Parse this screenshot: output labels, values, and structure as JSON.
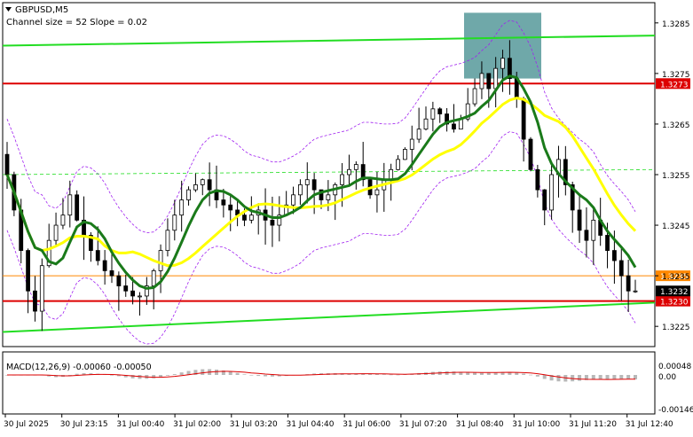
{
  "header": {
    "symbol_label": "GBPUSD,M5",
    "indicator_label": "Channel size = 52 Slope = 0.02"
  },
  "macd": {
    "label": "MACD(12,26,9) -0.00060 -0.00050",
    "axis_ticks": [
      "0.00048",
      "0.00",
      "-0.00146"
    ]
  },
  "colors": {
    "candle": "#000000",
    "ma_fast": "#1a7a1a",
    "ma_slow": "#ffff00",
    "envelope": "#a020f0",
    "channel": "#22dd22",
    "level_red": "#dd0000",
    "level_orange": "#ff8800",
    "zone": "#5f9ea0",
    "macd_hist": "#b8b8b8",
    "macd_signal": "#dd0000"
  },
  "chart_data": {
    "type": "candlestick",
    "symbol": "GBPUSD",
    "timeframe": "M5",
    "price_axis_ticks": [
      "1.3285",
      "1.3275",
      "1.3265",
      "1.3255",
      "1.3245",
      "1.3235",
      "1.3225"
    ],
    "time_axis_ticks": [
      "30 Jul 2025",
      "30 Jul 23:15",
      "31 Jul 00:40",
      "31 Jul 02:00",
      "31 Jul 03:20",
      "31 Jul 04:40",
      "31 Jul 06:00",
      "31 Jul 07:20",
      "31 Jul 08:40",
      "31 Jul 10:00",
      "31 Jul 11:20",
      "31 Jul 12:40"
    ],
    "levels": [
      {
        "label": "1.3273",
        "value": 1.3273,
        "color": "red"
      },
      {
        "label": "1.3230",
        "value": 1.323,
        "color": "red"
      },
      {
        "label": "1.3235",
        "value": 1.3235,
        "color": "orange"
      }
    ],
    "current_price_label": "1.3232",
    "current_price": 1.3232,
    "close_series": [
      1.3255,
      1.3248,
      1.324,
      1.3232,
      1.3228,
      1.3237,
      1.3242,
      1.3245,
      1.3247,
      1.3251,
      1.3246,
      1.3243,
      1.324,
      1.3238,
      1.3236,
      1.3235,
      1.3233,
      1.3232,
      1.3231,
      1.3231,
      1.3233,
      1.3236,
      1.324,
      1.3244,
      1.3247,
      1.325,
      1.3252,
      1.3253,
      1.3254,
      1.3252,
      1.325,
      1.3249,
      1.3248,
      1.3247,
      1.3246,
      1.3247,
      1.3248,
      1.3246,
      1.3245,
      1.3247,
      1.3249,
      1.3251,
      1.3253,
      1.3254,
      1.3252,
      1.325,
      1.3251,
      1.3253,
      1.3255,
      1.3256,
      1.3257,
      1.3254,
      1.3251,
      1.3252,
      1.3254,
      1.3256,
      1.3258,
      1.326,
      1.3262,
      1.3264,
      1.3266,
      1.3268,
      1.3267,
      1.3265,
      1.3264,
      1.3266,
      1.3269,
      1.3272,
      1.3275,
      1.3272,
      1.3276,
      1.3278,
      1.3274,
      1.327,
      1.3262,
      1.3256,
      1.3252,
      1.3248,
      1.3255,
      1.3258,
      1.3253,
      1.3248,
      1.3244,
      1.3242,
      1.3246,
      1.3243,
      1.324,
      1.3238,
      1.3235,
      1.3232,
      1.3232
    ],
    "price_min": 1.3221,
    "price_max": 1.3289,
    "resistance_zone": {
      "top": 1.3287,
      "bottom": 1.3274
    }
  }
}
